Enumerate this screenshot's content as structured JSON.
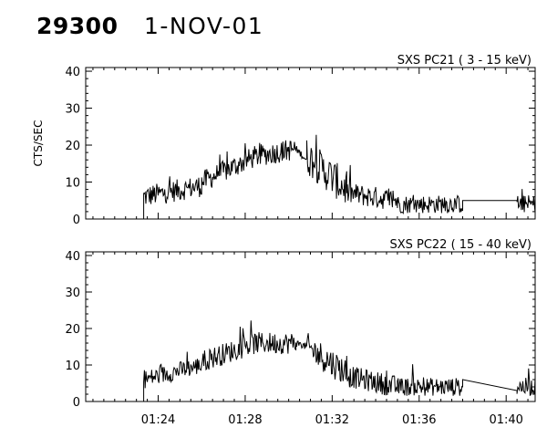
{
  "header": {
    "id": "29300",
    "date": "1-NOV-01"
  },
  "chart_data": [
    {
      "type": "line",
      "title": "SXS PC21  (  3 - 15 keV)",
      "ylabel": "CTS/SEC",
      "xlabel": "",
      "ylim": [
        0,
        41
      ],
      "yticks": [
        0,
        10,
        20,
        30,
        40
      ],
      "xlim": [
        "01:20:40",
        "01:41:20"
      ],
      "xticks": [
        "01:24",
        "01:28",
        "01:32",
        "01:36",
        "01:40"
      ],
      "grid": false,
      "series": [
        {
          "segments": [
            {
              "start": "01:22:50",
              "end": "01:23:20",
              "y": 0
            },
            {
              "start": "01:23:20",
              "end": "01:26:00",
              "y_mean_start": 6,
              "y_mean_end": 9,
              "noise": 3
            },
            {
              "start": "01:26:00",
              "end": "01:28:30",
              "y_mean_start": 10,
              "y_mean_end": 17,
              "noise": 3
            },
            {
              "start": "01:28:30",
              "end": "01:30:20",
              "y_mean_start": 17,
              "y_mean_end": 19,
              "noise": 3
            },
            {
              "start": "01:30:20",
              "end": "01:30:50",
              "y_mean_start": 19,
              "y_mean_end": 16,
              "noise": 1
            },
            {
              "start": "01:30:50",
              "end": "01:32:40",
              "y_mean_start": 17,
              "y_mean_end": 8,
              "noise": 5
            },
            {
              "start": "01:32:40",
              "end": "01:35:00",
              "y_mean_start": 7,
              "y_mean_end": 5,
              "noise": 3
            },
            {
              "start": "01:35:00",
              "end": "01:38:00",
              "y_mean_start": 4,
              "y_mean_end": 4,
              "noise": 2.5
            },
            {
              "start": "01:38:00",
              "end": "01:40:30",
              "y_mean_start": 5,
              "y_mean_end": 5,
              "noise": 0
            },
            {
              "start": "01:40:30",
              "end": "01:41:20",
              "y_mean_start": 4,
              "y_mean_end": 4,
              "noise": 2.5
            }
          ]
        }
      ]
    },
    {
      "type": "line",
      "title": "SXS PC22  ( 15 - 40 keV)",
      "ylabel": "",
      "xlabel": "",
      "ylim": [
        0,
        41
      ],
      "yticks": [
        0,
        10,
        20,
        30,
        40
      ],
      "xlim": [
        "01:20:40",
        "01:41:20"
      ],
      "xticks": [
        "01:24",
        "01:28",
        "01:32",
        "01:36",
        "01:40"
      ],
      "grid": false,
      "series": [
        {
          "segments": [
            {
              "start": "01:22:50",
              "end": "01:23:20",
              "y": 0
            },
            {
              "start": "01:23:20",
              "end": "01:26:00",
              "y_mean_start": 6,
              "y_mean_end": 10,
              "noise": 2.5
            },
            {
              "start": "01:26:00",
              "end": "01:28:30",
              "y_mean_start": 11,
              "y_mean_end": 16,
              "noise": 3
            },
            {
              "start": "01:28:30",
              "end": "01:30:20",
              "y_mean_start": 16,
              "y_mean_end": 16,
              "noise": 3
            },
            {
              "start": "01:30:20",
              "end": "01:30:50",
              "y_mean_start": 16,
              "y_mean_end": 15,
              "noise": 1
            },
            {
              "start": "01:30:50",
              "end": "01:32:40",
              "y_mean_start": 15,
              "y_mean_end": 8,
              "noise": 4
            },
            {
              "start": "01:32:40",
              "end": "01:35:00",
              "y_mean_start": 7,
              "y_mean_end": 4,
              "noise": 3
            },
            {
              "start": "01:35:00",
              "end": "01:38:00",
              "y_mean_start": 4,
              "y_mean_end": 4,
              "noise": 2.5
            },
            {
              "start": "01:38:00",
              "end": "01:40:30",
              "y_mean_start": 6,
              "y_mean_end": 3,
              "noise": 0
            },
            {
              "start": "01:40:30",
              "end": "01:41:20",
              "y_mean_start": 4,
              "y_mean_end": 4,
              "noise": 2.5
            }
          ]
        }
      ]
    }
  ]
}
